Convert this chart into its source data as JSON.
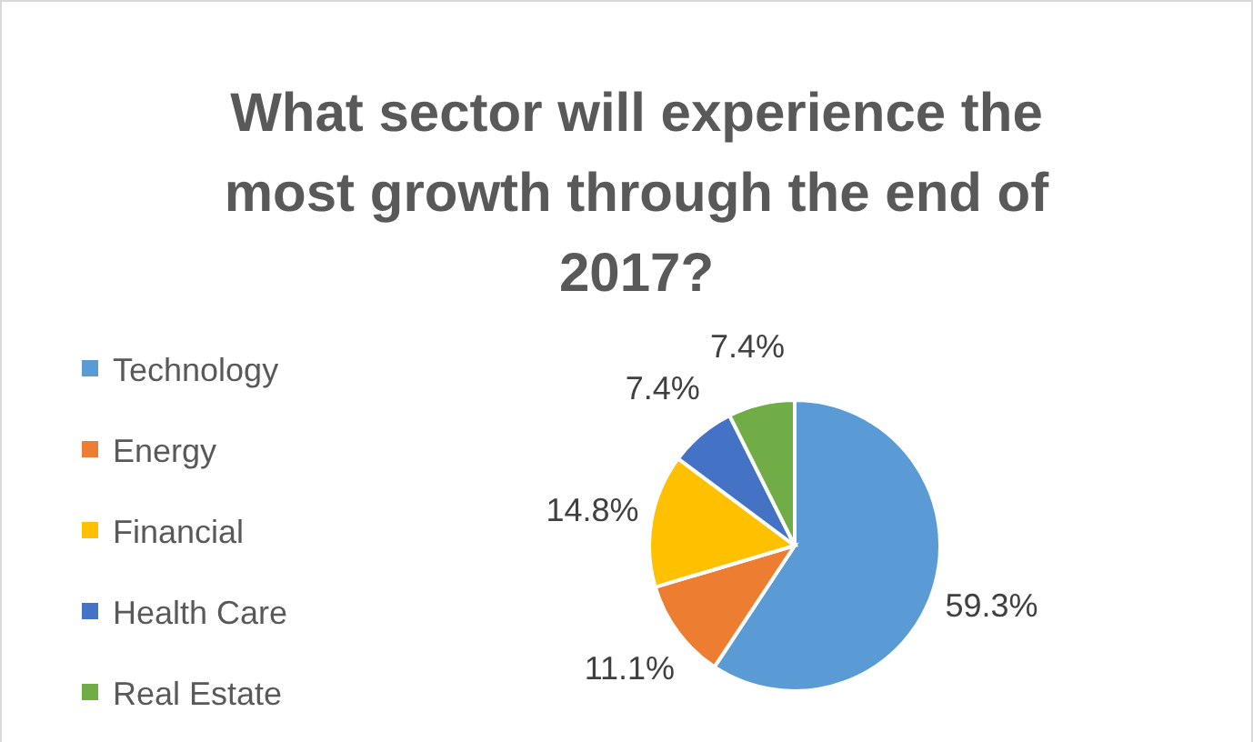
{
  "chart_data": {
    "type": "pie",
    "title": "What sector will experience the most growth through the end of 2017?",
    "categories": [
      "Technology",
      "Energy",
      "Financial",
      "Health Care",
      "Real Estate"
    ],
    "values": [
      59.3,
      11.1,
      14.8,
      7.4,
      7.4
    ],
    "colors": [
      "#5b9bd5",
      "#ed7d31",
      "#ffc000",
      "#4472c4",
      "#70ad47"
    ],
    "value_labels": [
      "59.3%",
      "11.1%",
      "14.8%",
      "7.4%",
      "7.4%"
    ],
    "legend": "left"
  }
}
